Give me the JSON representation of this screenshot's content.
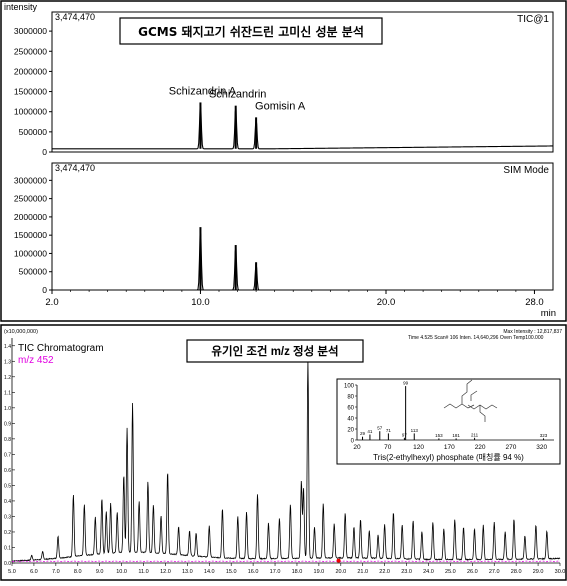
{
  "chart_data": [
    {
      "type": "line",
      "panel": "top",
      "ylabel": "intensity",
      "title": "GCMS 돼지고기 쉬잔드린 고미신 성분 분석",
      "xunit": "min",
      "xlim": [
        2.0,
        29.0
      ],
      "xticks": [
        2.0,
        10.0,
        20.0,
        28.0
      ],
      "xtick_labels": [
        "2.0",
        "10.0",
        "20.0",
        "28.0"
      ],
      "subplots": [
        {
          "name": "TIC",
          "corner_label": "TIC@1",
          "max_label": "3,474,470",
          "ylim": [
            0,
            3474470
          ],
          "yticks": [
            0,
            500000,
            1000000,
            1500000,
            2000000,
            2500000,
            3000000
          ],
          "ytick_labels": [
            "0",
            "500000",
            "1000000",
            "1500000",
            "2000000",
            "2500000",
            "3000000"
          ],
          "baseline": 80000,
          "baseline_end": 150000,
          "peaks": [
            {
              "x": 10.0,
              "y": 1150000,
              "label": "Schizandrin A"
            },
            {
              "x": 11.9,
              "y": 1070000,
              "label": "Schizandrin"
            },
            {
              "x": 13.0,
              "y": 780000,
              "label": "Gomisin A"
            }
          ]
        },
        {
          "name": "SIM",
          "corner_label": "SIM Mode",
          "max_label": "3,474,470",
          "ylim": [
            0,
            3474470
          ],
          "yticks": [
            0,
            500000,
            1000000,
            1500000,
            2000000,
            2500000,
            3000000
          ],
          "ytick_labels": [
            "0",
            "500000",
            "1000000",
            "1500000",
            "2000000",
            "2500000",
            "3000000"
          ],
          "baseline": 0,
          "peaks": [
            {
              "x": 10.0,
              "y": 1720000
            },
            {
              "x": 11.9,
              "y": 1230000
            },
            {
              "x": 13.0,
              "y": 760000
            }
          ]
        }
      ]
    },
    {
      "type": "line",
      "panel": "bottom",
      "title": "유기인 조건 m/z 정성 분석",
      "corner_label_top": "(x10,000,000)",
      "legend": [
        "TIC Chromatogram",
        "m/z 452"
      ],
      "info_line": "Time 4.525   Scan# 106   Inten. 14,640,296   Oven Temp100.000",
      "max_intensity": "Max Intensity : 12,817,837",
      "xlim": [
        5.0,
        30.0
      ],
      "xticks": [
        5.0,
        6.0,
        7.0,
        8.0,
        9.0,
        10.0,
        11.0,
        12.0,
        13.0,
        14.0,
        15.0,
        16.0,
        17.0,
        18.0,
        19.0,
        20.0,
        21.0,
        22.0,
        23.0,
        24.0,
        25.0,
        26.0,
        27.0,
        28.0,
        29.0,
        30.0
      ],
      "xtick_labels": [
        "5.0",
        "6.0",
        "7.0",
        "8.0",
        "9.0",
        "10.0",
        "11.0",
        "12.0",
        "13.0",
        "14.0",
        "15.0",
        "16.0",
        "17.0",
        "18.0",
        "19.0",
        "20.0",
        "21.0",
        "22.0",
        "23.0",
        "24.0",
        "25.0",
        "26.0",
        "27.0",
        "28.0",
        "29.0",
        "30.0"
      ],
      "ylim": [
        0,
        1.45
      ],
      "ytick_labels": [
        "0.0",
        "0.1",
        "0.2",
        "0.3",
        "0.4",
        "0.5",
        "0.6",
        "0.7",
        "0.8",
        "0.9",
        "1.0",
        "1.1",
        "1.2",
        "1.3",
        "1.4"
      ],
      "peaks": [
        {
          "x": 5.9,
          "y": 0.03
        },
        {
          "x": 6.4,
          "y": 0.05
        },
        {
          "x": 7.1,
          "y": 0.14
        },
        {
          "x": 7.8,
          "y": 0.4
        },
        {
          "x": 8.3,
          "y": 0.33
        },
        {
          "x": 8.8,
          "y": 0.24
        },
        {
          "x": 9.1,
          "y": 0.36
        },
        {
          "x": 9.3,
          "y": 0.27
        },
        {
          "x": 9.5,
          "y": 0.32
        },
        {
          "x": 9.8,
          "y": 0.26
        },
        {
          "x": 10.1,
          "y": 0.5
        },
        {
          "x": 10.25,
          "y": 0.8
        },
        {
          "x": 10.5,
          "y": 0.96
        },
        {
          "x": 10.8,
          "y": 0.33
        },
        {
          "x": 11.2,
          "y": 0.46
        },
        {
          "x": 11.45,
          "y": 0.31
        },
        {
          "x": 11.8,
          "y": 0.24
        },
        {
          "x": 12.1,
          "y": 0.53
        },
        {
          "x": 12.6,
          "y": 0.18
        },
        {
          "x": 13.1,
          "y": 0.16
        },
        {
          "x": 13.4,
          "y": 0.15
        },
        {
          "x": 14.0,
          "y": 0.2
        },
        {
          "x": 14.6,
          "y": 0.32
        },
        {
          "x": 15.3,
          "y": 0.27
        },
        {
          "x": 15.7,
          "y": 0.3
        },
        {
          "x": 16.2,
          "y": 0.42
        },
        {
          "x": 16.7,
          "y": 0.23
        },
        {
          "x": 17.2,
          "y": 0.26
        },
        {
          "x": 17.7,
          "y": 0.35
        },
        {
          "x": 18.2,
          "y": 0.5
        },
        {
          "x": 18.3,
          "y": 0.45
        },
        {
          "x": 18.5,
          "y": 1.28
        },
        {
          "x": 18.8,
          "y": 0.2
        },
        {
          "x": 19.2,
          "y": 0.35
        },
        {
          "x": 19.7,
          "y": 0.22
        },
        {
          "x": 20.2,
          "y": 0.29
        },
        {
          "x": 20.6,
          "y": 0.2
        },
        {
          "x": 20.9,
          "y": 0.25
        },
        {
          "x": 21.3,
          "y": 0.18
        },
        {
          "x": 21.7,
          "y": 0.15
        },
        {
          "x": 22.0,
          "y": 0.22
        },
        {
          "x": 22.4,
          "y": 0.3
        },
        {
          "x": 22.8,
          "y": 0.22
        },
        {
          "x": 23.3,
          "y": 0.25
        },
        {
          "x": 23.7,
          "y": 0.18
        },
        {
          "x": 24.2,
          "y": 0.24
        },
        {
          "x": 24.7,
          "y": 0.2
        },
        {
          "x": 25.2,
          "y": 0.26
        },
        {
          "x": 25.6,
          "y": 0.21
        },
        {
          "x": 26.1,
          "y": 0.2
        },
        {
          "x": 26.5,
          "y": 0.22
        },
        {
          "x": 27.0,
          "y": 0.24
        },
        {
          "x": 27.5,
          "y": 0.18
        },
        {
          "x": 27.9,
          "y": 0.26
        },
        {
          "x": 28.4,
          "y": 0.15
        },
        {
          "x": 28.9,
          "y": 0.22
        },
        {
          "x": 29.4,
          "y": 0.18
        }
      ],
      "inset": {
        "caption": "Tris(2-ethylhexyl) phosphate (매칭률 94 %)",
        "ylim": [
          0,
          100
        ],
        "yticks": [
          0,
          20,
          40,
          60,
          80,
          100
        ],
        "ytick_labels": [
          "0",
          "20",
          "40",
          "60",
          "80",
          "100"
        ],
        "xticks": [
          20,
          70,
          120,
          170,
          220,
          270,
          320
        ],
        "xtick_labels": [
          "20",
          "70",
          "120",
          "170",
          "220",
          "270",
          "320"
        ],
        "xlim": [
          20,
          340
        ],
        "bars": [
          {
            "x": 29,
            "y": 6,
            "label": "29"
          },
          {
            "x": 41,
            "y": 10,
            "label": "41"
          },
          {
            "x": 57,
            "y": 16,
            "label": "57"
          },
          {
            "x": 71,
            "y": 12,
            "label": "71"
          },
          {
            "x": 99,
            "y": 98,
            "label": "99"
          },
          {
            "x": 113,
            "y": 12,
            "label": "113"
          },
          {
            "x": 97,
            "y": 4,
            "label": "97"
          },
          {
            "x": 153,
            "y": 3,
            "label": "153"
          },
          {
            "x": 181,
            "y": 3,
            "label": "181"
          },
          {
            "x": 211,
            "y": 4,
            "label": "211"
          },
          {
            "x": 323,
            "y": 3,
            "label": "323"
          }
        ]
      }
    }
  ]
}
